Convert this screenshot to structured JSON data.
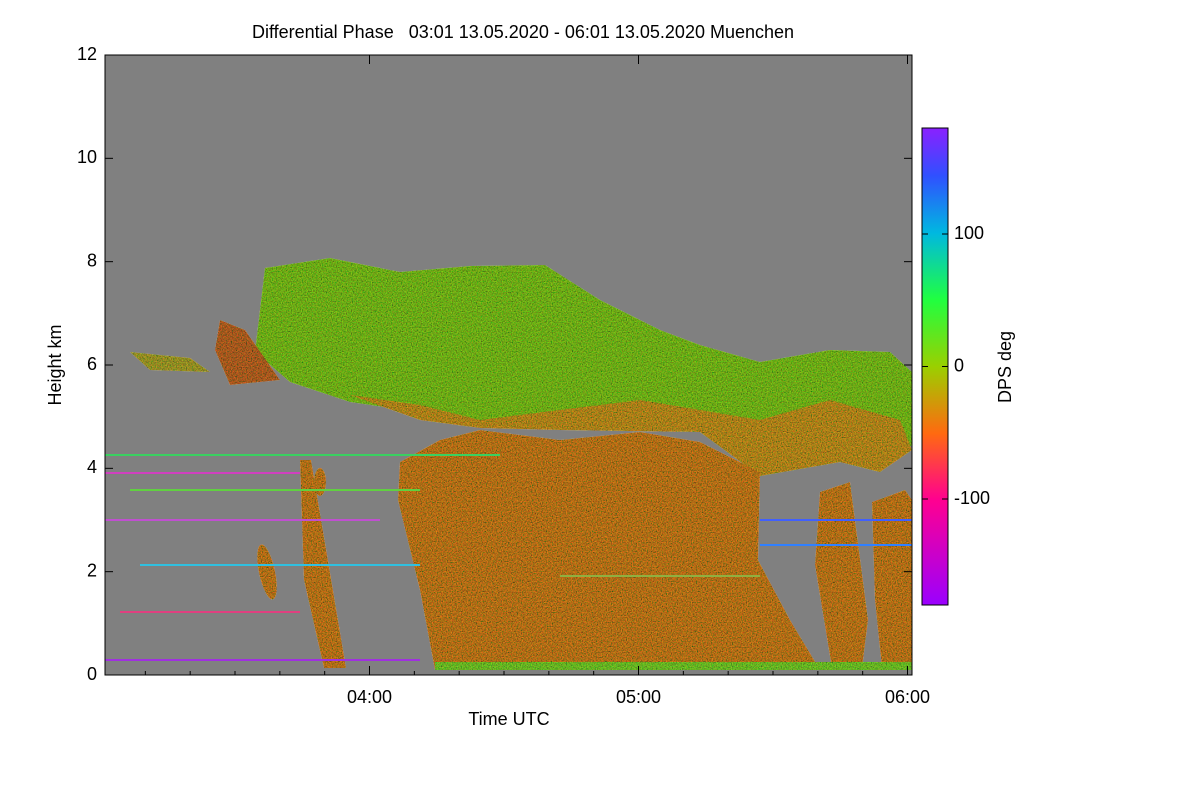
{
  "chart_data": {
    "type": "heatmap",
    "title": "Differential Phase   03:01 13.05.2020 - 06:01 13.05.2020 Muenchen",
    "x_label": "Time UTC",
    "y_label": "Height km",
    "xlim": [
      3.0167,
      6.0167
    ],
    "xticks": [
      {
        "value": 4,
        "label": "04:00"
      },
      {
        "value": 5,
        "label": "05:00"
      },
      {
        "value": 6,
        "label": "06:00"
      }
    ],
    "ylim": [
      0,
      12
    ],
    "yticks": [
      0,
      2,
      4,
      6,
      8,
      10,
      12
    ],
    "colorbar": {
      "label": "DPS deg",
      "lim": [
        -180,
        180
      ],
      "ticks": [
        -100,
        0,
        100
      ]
    }
  }
}
